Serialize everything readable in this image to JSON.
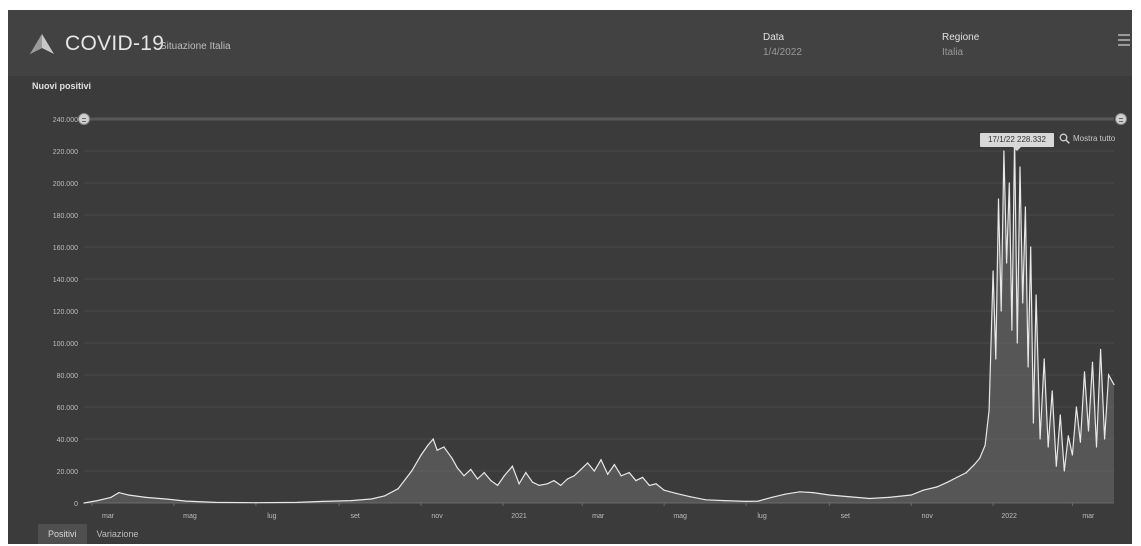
{
  "header": {
    "title": "COVID-19",
    "subtitle": "Situazione Italia",
    "date_label": "Data",
    "date_value": "1/4/2022",
    "region_label": "Regione",
    "region_value": "Italia"
  },
  "colors": {
    "background": "#3b3b3b",
    "header_bg": "#424242",
    "series": "#e8e8e8",
    "area_fill": "#6e6e6e",
    "grid": "#4a4a4a"
  },
  "tooltip_text": "17/1/22 228.332",
  "zoom_label": "Mostra tutto",
  "tabs": [
    {
      "label": "Positivi",
      "active": true
    },
    {
      "label": "Variazione",
      "active": false
    }
  ],
  "chart_data": {
    "type": "area",
    "title": "Nuovi positivi",
    "xlabel": "",
    "ylabel": "",
    "ylim": [
      0,
      240000
    ],
    "yticks": [
      0,
      20000,
      40000,
      60000,
      80000,
      100000,
      120000,
      140000,
      160000,
      180000,
      200000,
      220000,
      240000
    ],
    "ytick_labels": [
      "0",
      "20.000",
      "40.000",
      "60.000",
      "80.000",
      "100.000",
      "120.000",
      "140.000",
      "160.000",
      "180.000",
      "200.000",
      "220.000",
      "240.000"
    ],
    "xlim": [
      "2020-02-24",
      "2022-04-01"
    ],
    "xticks": [
      {
        "date": "2020-03-01",
        "label": "mar"
      },
      {
        "date": "2020-05-01",
        "label": "mag"
      },
      {
        "date": "2020-07-01",
        "label": "lug"
      },
      {
        "date": "2020-09-01",
        "label": "set"
      },
      {
        "date": "2020-11-01",
        "label": "nov"
      },
      {
        "date": "2021-01-01",
        "label": "2021"
      },
      {
        "date": "2021-03-01",
        "label": "mar"
      },
      {
        "date": "2021-05-01",
        "label": "mag"
      },
      {
        "date": "2021-07-01",
        "label": "lug"
      },
      {
        "date": "2021-09-01",
        "label": "set"
      },
      {
        "date": "2021-11-01",
        "label": "nov"
      },
      {
        "date": "2022-01-01",
        "label": "2022"
      },
      {
        "date": "2022-03-01",
        "label": "mar"
      }
    ],
    "grid": true,
    "series": [
      {
        "x": [
          "2020-02-24",
          "2020-03-05",
          "2020-03-15",
          "2020-03-21",
          "2020-03-28",
          "2020-04-10",
          "2020-04-25",
          "2020-05-10",
          "2020-06-01",
          "2020-07-01",
          "2020-08-01",
          "2020-08-20",
          "2020-09-10",
          "2020-09-25",
          "2020-10-05",
          "2020-10-15",
          "2020-10-25",
          "2020-11-01",
          "2020-11-06",
          "2020-11-10",
          "2020-11-13",
          "2020-11-18",
          "2020-11-24",
          "2020-11-28",
          "2020-12-03",
          "2020-12-08",
          "2020-12-13",
          "2020-12-18",
          "2020-12-23",
          "2020-12-28",
          "2021-01-02",
          "2021-01-08",
          "2021-01-13",
          "2021-01-18",
          "2021-01-23",
          "2021-01-28",
          "2021-02-03",
          "2021-02-08",
          "2021-02-13",
          "2021-02-18",
          "2021-02-23",
          "2021-02-28",
          "2021-03-05",
          "2021-03-10",
          "2021-03-15",
          "2021-03-20",
          "2021-03-25",
          "2021-03-30",
          "2021-04-05",
          "2021-04-10",
          "2021-04-15",
          "2021-04-20",
          "2021-04-25",
          "2021-05-01",
          "2021-05-10",
          "2021-05-20",
          "2021-06-01",
          "2021-06-15",
          "2021-07-01",
          "2021-07-10",
          "2021-07-20",
          "2021-07-30",
          "2021-08-10",
          "2021-08-20",
          "2021-09-01",
          "2021-09-15",
          "2021-10-01",
          "2021-10-15",
          "2021-11-01",
          "2021-11-10",
          "2021-11-20",
          "2021-11-28",
          "2021-12-05",
          "2021-12-12",
          "2021-12-18",
          "2021-12-22",
          "2021-12-26",
          "2021-12-29",
          "2022-01-01",
          "2022-01-03",
          "2022-01-05",
          "2022-01-07",
          "2022-01-09",
          "2022-01-11",
          "2022-01-13",
          "2022-01-15",
          "2022-01-17",
          "2022-01-19",
          "2022-01-21",
          "2022-01-23",
          "2022-01-25",
          "2022-01-27",
          "2022-01-29",
          "2022-01-31",
          "2022-02-02",
          "2022-02-05",
          "2022-02-08",
          "2022-02-11",
          "2022-02-14",
          "2022-02-17",
          "2022-02-20",
          "2022-02-23",
          "2022-02-26",
          "2022-03-01",
          "2022-03-04",
          "2022-03-07",
          "2022-03-10",
          "2022-03-13",
          "2022-03-16",
          "2022-03-19",
          "2022-03-22",
          "2022-03-25",
          "2022-03-28",
          "2022-04-01"
        ],
        "y": [
          0,
          1500,
          3500,
          6500,
          5000,
          3500,
          2500,
          1200,
          400,
          200,
          400,
          1000,
          1500,
          2500,
          4500,
          9000,
          20000,
          30000,
          36000,
          40000,
          33000,
          35000,
          28000,
          22000,
          17000,
          21000,
          15000,
          19000,
          14000,
          11000,
          17000,
          23000,
          12000,
          19000,
          13000,
          11000,
          12000,
          14000,
          11000,
          15000,
          17000,
          21000,
          25000,
          20000,
          27000,
          18000,
          24000,
          17000,
          19000,
          14000,
          16000,
          11000,
          12000,
          8000,
          6000,
          4000,
          2000,
          1500,
          1000,
          1200,
          3500,
          5500,
          7000,
          6500,
          5000,
          4000,
          2800,
          3500,
          5000,
          8000,
          10000,
          13000,
          16000,
          19000,
          24000,
          28000,
          36000,
          58000,
          145000,
          90000,
          190000,
          120000,
          220000,
          150000,
          200000,
          108000,
          228332,
          100000,
          210000,
          125000,
          185000,
          85000,
          160000,
          50000,
          130000,
          40000,
          90000,
          35000,
          70000,
          23000,
          55000,
          20000,
          42000,
          30000,
          60000,
          38000,
          82000,
          45000,
          88000,
          35000,
          96000,
          40000,
          80000,
          74000
        ]
      }
    ]
  }
}
